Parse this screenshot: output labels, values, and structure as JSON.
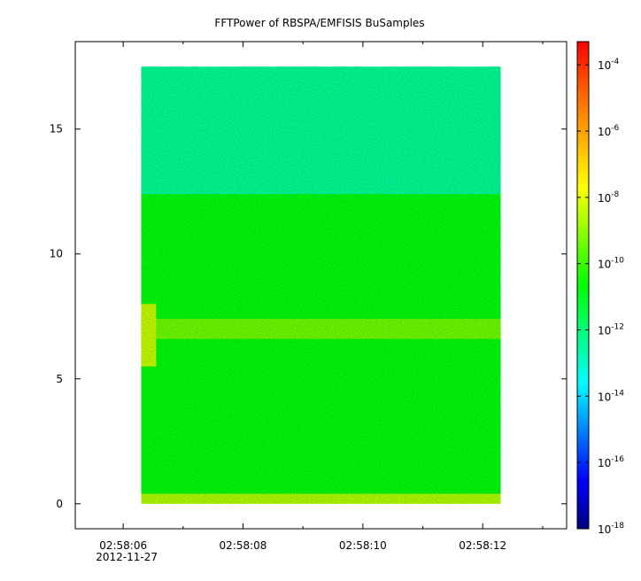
{
  "chart_data": {
    "type": "heatmap",
    "title": "FFTPower of RBSPA/EMFISIS  BuSamples",
    "xlabel": "",
    "ylabel": "",
    "x_ticks": [
      {
        "label": "02:58:06",
        "sublabel": "2012-11-27",
        "t": 6
      },
      {
        "label": "02:58:08",
        "t": 8
      },
      {
        "label": "02:58:10",
        "t": 10
      },
      {
        "label": "02:58:12",
        "t": 12
      }
    ],
    "x_minor_ticks": [
      7,
      9,
      11,
      13
    ],
    "xlim": [
      5.2,
      13.4
    ],
    "x_data_range": [
      6.3,
      12.3
    ],
    "y_ticks": [
      0,
      5,
      10,
      15
    ],
    "ylim": [
      -1,
      18.5
    ],
    "y_data_range": [
      0,
      17.5
    ],
    "colorbar": {
      "scale": "log",
      "range_exponents": [
        -18,
        -3.3
      ],
      "ticks": [
        {
          "base": "10",
          "exp": "-4"
        },
        {
          "base": "10",
          "exp": "-6"
        },
        {
          "base": "10",
          "exp": "-8"
        },
        {
          "base": "10",
          "exp": "-10"
        },
        {
          "base": "10",
          "exp": "-12"
        },
        {
          "base": "10",
          "exp": "-14"
        },
        {
          "base": "10",
          "exp": "-16"
        },
        {
          "base": "10",
          "exp": "-18"
        }
      ],
      "colormap": [
        "#000080",
        "#0000ff",
        "#0080ff",
        "#00ffff",
        "#00ff80",
        "#00ff00",
        "#80ff00",
        "#ffff00",
        "#ffb000",
        "#ff6000",
        "#ff0000"
      ]
    },
    "bands": [
      {
        "freq": [
          12.4,
          17.5
        ],
        "log_power": -12.5
      },
      {
        "freq": [
          0.4,
          12.4
        ],
        "log_power": -10.8
      },
      {
        "freq": [
          6.6,
          7.4
        ],
        "log_power": -9.3
      },
      {
        "freq": [
          0,
          0.4
        ],
        "log_power": -8.5
      }
    ],
    "features": [
      {
        "t": [
          6.3,
          6.55
        ],
        "freq": [
          5.5,
          8.0
        ],
        "log_power": -8.2
      }
    ]
  }
}
